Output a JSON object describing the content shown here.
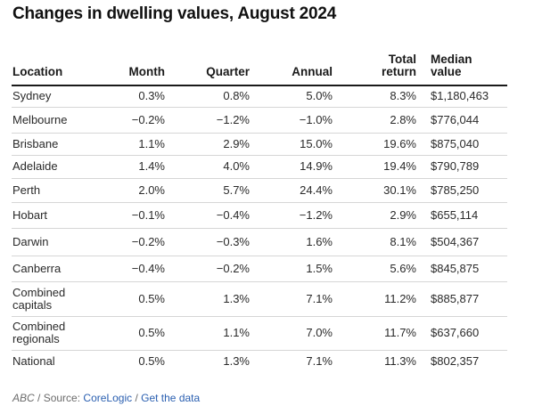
{
  "title": "Changes in dwelling values, August 2024",
  "table": {
    "headers": {
      "location": "Location",
      "month": "Month",
      "quarter": "Quarter",
      "annual": "Annual",
      "total_line1": "Total",
      "total_line2": "return",
      "median_line1": "Median",
      "median_line2": "value"
    },
    "rows": [
      {
        "location": [
          "Sydney"
        ],
        "month": "0.3%",
        "quarter": "0.8%",
        "annual": "5.0%",
        "total": "8.3%",
        "median": "$1,180,463"
      },
      {
        "location": [
          "Melbourne"
        ],
        "month": "−0.2%",
        "quarter": "−1.2%",
        "annual": "−1.0%",
        "total": "2.8%",
        "median": "$776,044"
      },
      {
        "location": [
          "Brisbane"
        ],
        "month": "1.1%",
        "quarter": "2.9%",
        "annual": "15.0%",
        "total": "19.6%",
        "median": "$875,040"
      },
      {
        "location": [
          "Adelaide"
        ],
        "month": "1.4%",
        "quarter": "4.0%",
        "annual": "14.9%",
        "total": "19.4%",
        "median": "$790,789"
      },
      {
        "location": [
          "Perth"
        ],
        "month": "2.0%",
        "quarter": "5.7%",
        "annual": "24.4%",
        "total": "30.1%",
        "median": "$785,250"
      },
      {
        "location": [
          "Hobart"
        ],
        "month": "−0.1%",
        "quarter": "−0.4%",
        "annual": "−1.2%",
        "total": "2.9%",
        "median": "$655,114"
      },
      {
        "location": [
          "Darwin"
        ],
        "month": "−0.2%",
        "quarter": "−0.3%",
        "annual": "1.6%",
        "total": "8.1%",
        "median": "$504,367"
      },
      {
        "location": [
          "Canberra"
        ],
        "month": "−0.4%",
        "quarter": "−0.2%",
        "annual": "1.5%",
        "total": "5.6%",
        "median": "$845,875"
      },
      {
        "location": [
          "Combined",
          "capitals"
        ],
        "month": "0.5%",
        "quarter": "1.3%",
        "annual": "7.1%",
        "total": "11.2%",
        "median": "$885,877"
      },
      {
        "location": [
          "Combined",
          "regionals"
        ],
        "month": "0.5%",
        "quarter": "1.1%",
        "annual": "7.0%",
        "total": "11.7%",
        "median": "$637,660"
      },
      {
        "location": [
          "National"
        ],
        "month": "0.5%",
        "quarter": "1.3%",
        "annual": "7.1%",
        "total": "11.3%",
        "median": "$802,357"
      }
    ]
  },
  "footer": {
    "publisher": "ABC",
    "separator": " / ",
    "source_label": "Source: ",
    "source_link": "CoreLogic",
    "separator2": " / ",
    "data_link": "Get the data"
  },
  "colors": {
    "link": "#2a5fb0",
    "text": "#2a2a2a",
    "muted": "#6b6b6b",
    "rule": "#d6d6d6"
  }
}
